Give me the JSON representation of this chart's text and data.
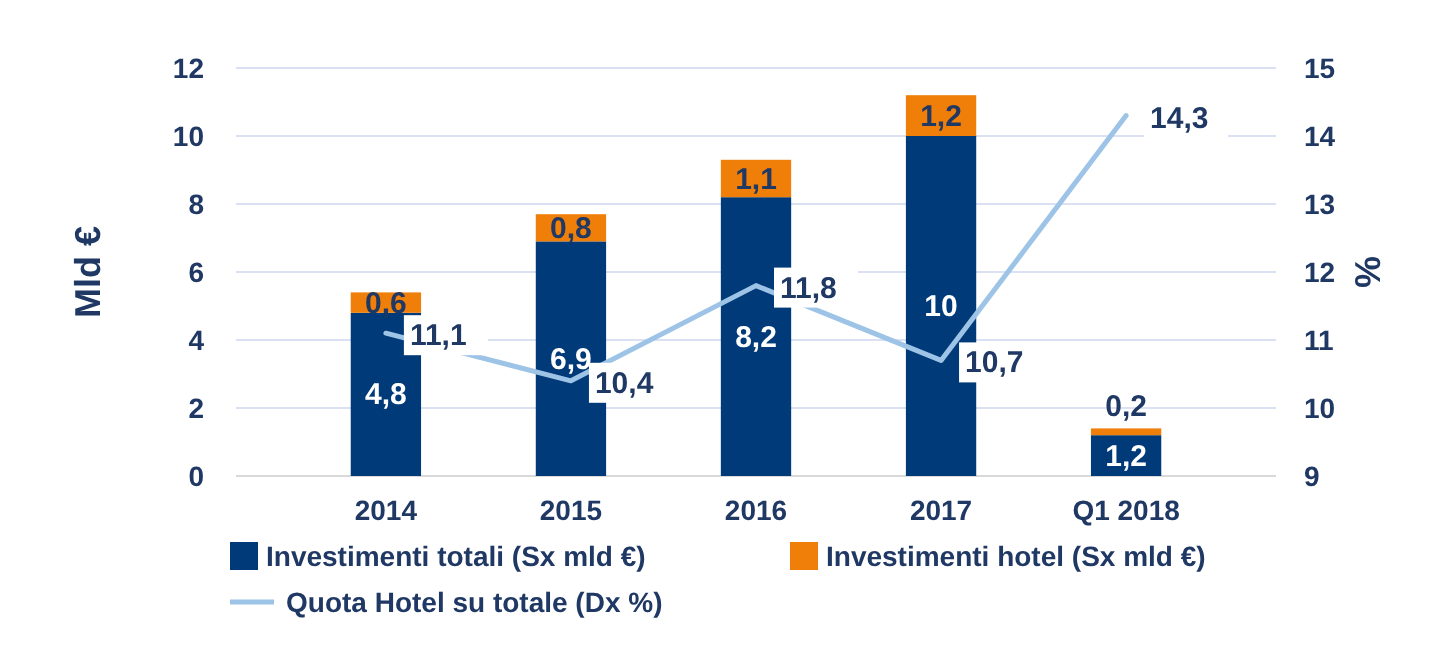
{
  "chart_data": {
    "type": "bar",
    "stacked": true,
    "categories": [
      "2014",
      "2015",
      "2016",
      "2017",
      "Q1 2018"
    ],
    "ylabel": "Mld €",
    "y2label": "%",
    "series": [
      {
        "name": "Investimenti totali (Sx mld €)",
        "color": "#003a78",
        "values": [
          4.8,
          6.9,
          8.2,
          10,
          1.2
        ],
        "value_labels": [
          "4,8",
          "6,9",
          "8,2",
          "10",
          "1,2"
        ]
      },
      {
        "name": "Investimenti hotel (Sx mld €)",
        "color": "#f07f09",
        "values": [
          0.6,
          0.8,
          1.1,
          1.2,
          0.2
        ],
        "value_labels": [
          "0,6",
          "0,8",
          "1,1",
          "1,2",
          "0,2"
        ]
      },
      {
        "name": "Quota Hotel su totale (Dx %)",
        "type": "line",
        "axis": "y2",
        "color": "#9dc3e6",
        "values": [
          11.1,
          10.4,
          11.8,
          10.7,
          14.3
        ],
        "value_labels": [
          "11,1",
          "10,4",
          "11,8",
          "10,7",
          "14,3"
        ]
      }
    ],
    "ylim": [
      0,
      12
    ],
    "yticks": [
      0,
      2,
      4,
      6,
      8,
      10,
      12
    ],
    "y2lim": [
      9,
      15
    ],
    "y2ticks": [
      9,
      10,
      11,
      12,
      13,
      14,
      15
    ],
    "grid": "y",
    "legend": "bottom",
    "marker": "none",
    "line_style": "solid"
  }
}
